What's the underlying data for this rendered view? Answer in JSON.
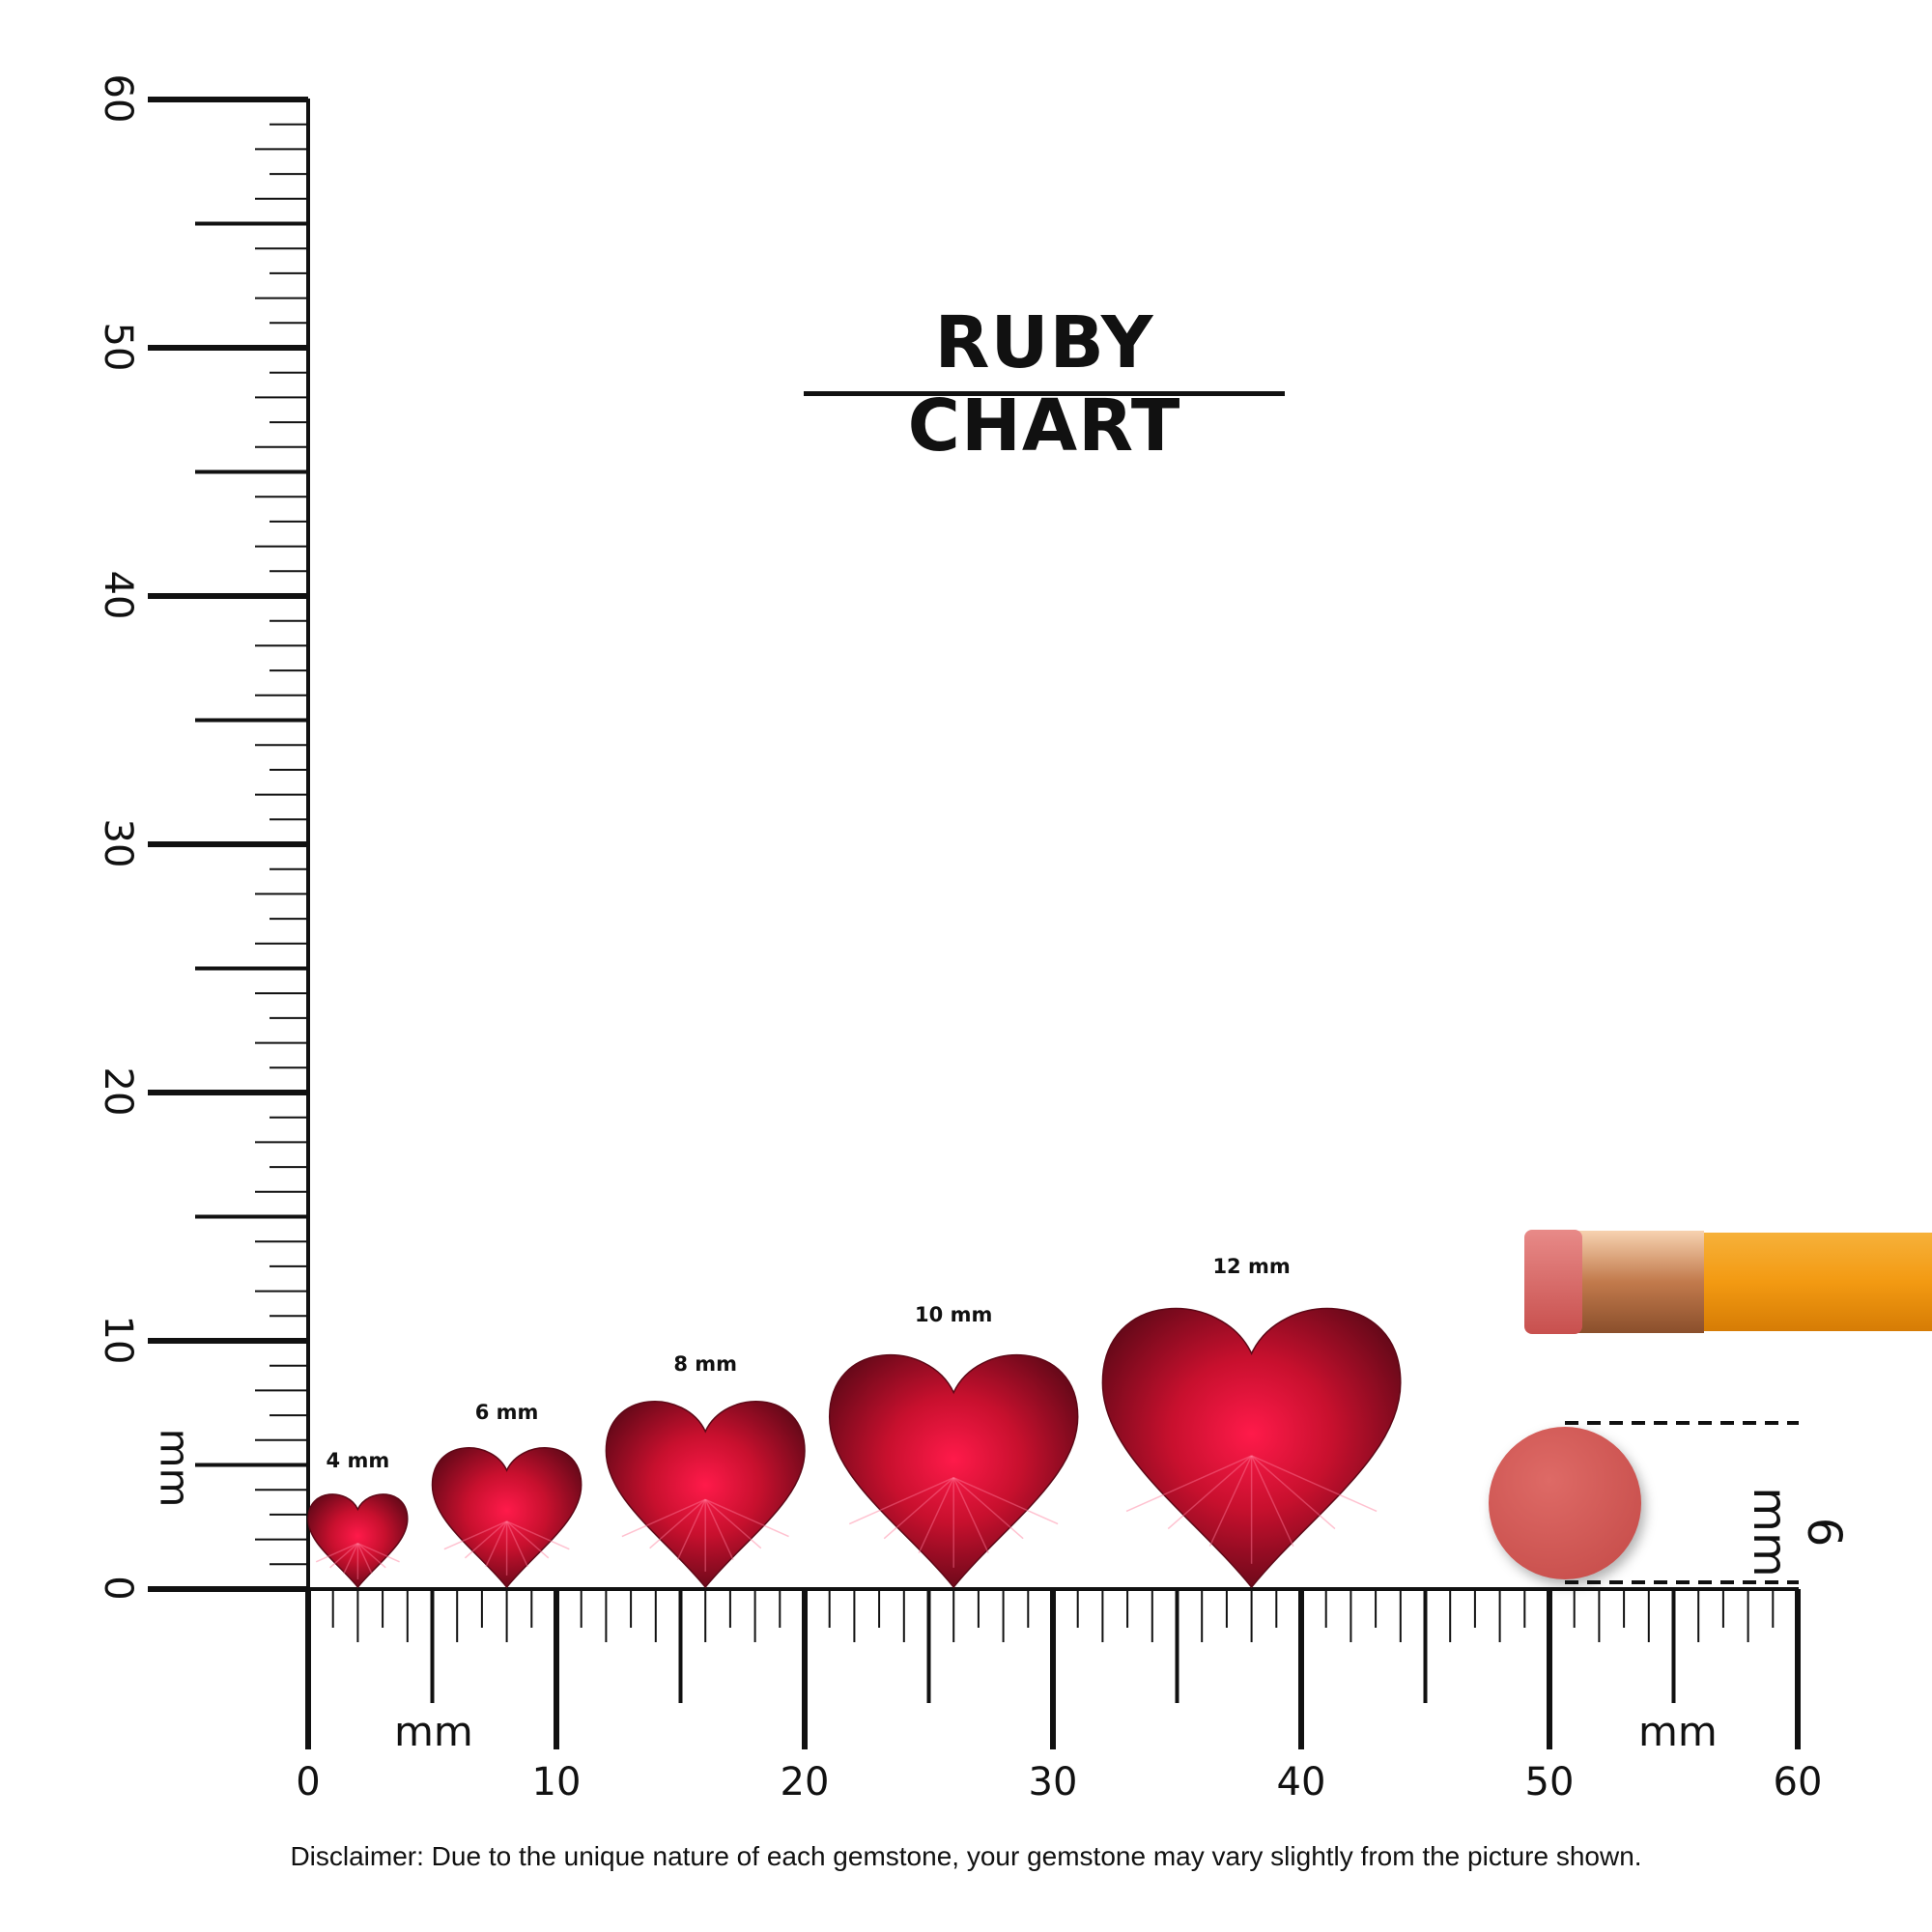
{
  "title": "RUBY CHART",
  "ruler": {
    "unit": "mm",
    "vertical_labels": [
      "0",
      "10",
      "20",
      "30",
      "40",
      "50",
      "60"
    ],
    "horizontal_labels": [
      "0",
      "10",
      "20",
      "30",
      "40",
      "50",
      "60"
    ],
    "range_mm": [
      0,
      60
    ]
  },
  "gemstones": [
    {
      "label": "4 mm",
      "size_mm": 4,
      "position_mm": 2
    },
    {
      "label": "6 mm",
      "size_mm": 6,
      "position_mm": 8
    },
    {
      "label": "8 mm",
      "size_mm": 8,
      "position_mm": 16
    },
    {
      "label": "10 mm",
      "size_mm": 10,
      "position_mm": 26
    },
    {
      "label": "12 mm",
      "size_mm": 12,
      "position_mm": 38
    }
  ],
  "eraser_reference": {
    "label": "6 mm",
    "color": "#d45a57"
  },
  "colors": {
    "ruby": "#c8102e",
    "ruby_dark": "#6e0a1c",
    "pencil": "#f39a12",
    "ferrule": "#d69a6a"
  },
  "disclaimer": "Disclaimer: Due to the unique nature of each gemstone, your gemstone may vary slightly from the picture shown."
}
